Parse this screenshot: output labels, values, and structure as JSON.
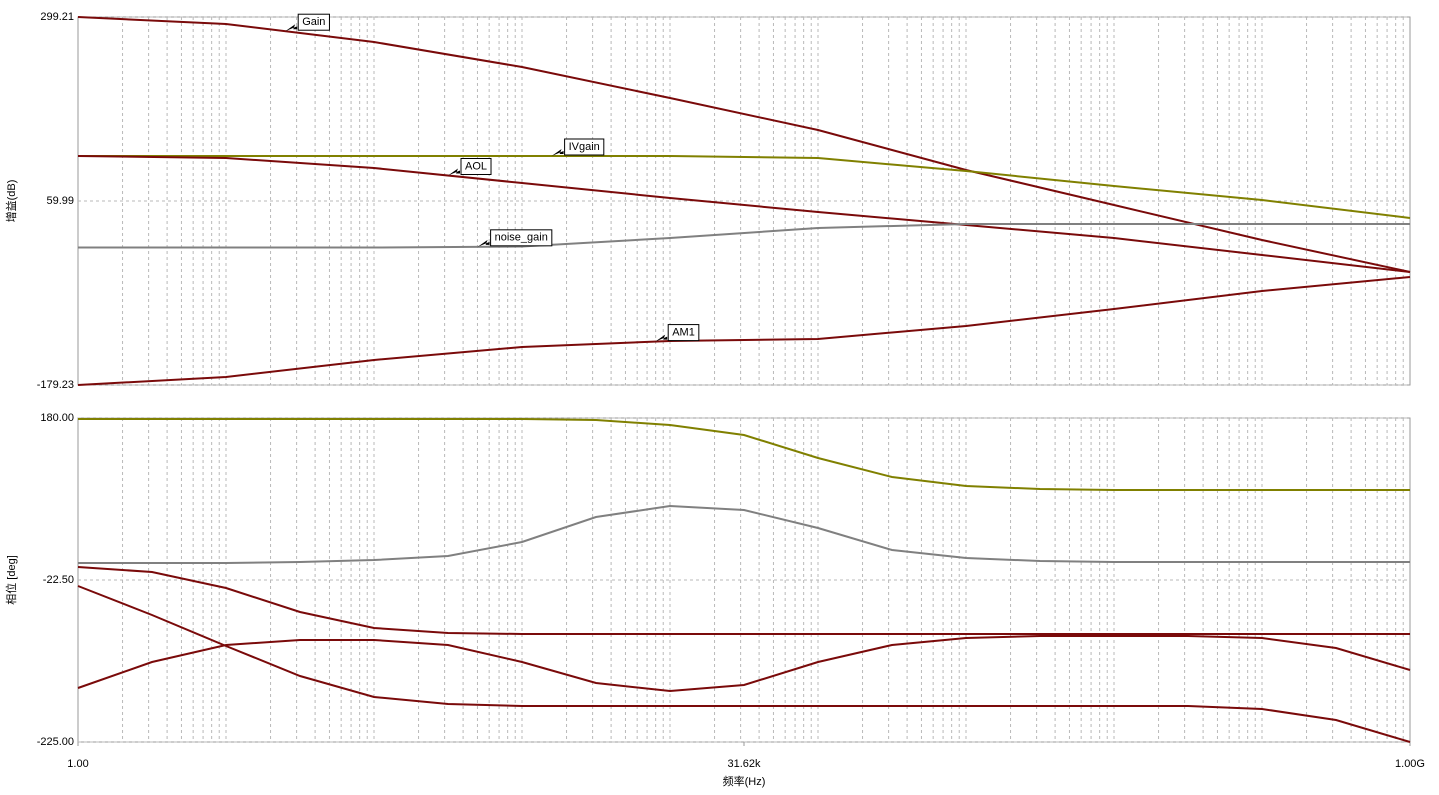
{
  "chart_data": [
    {
      "type": "line",
      "x_scale": "log",
      "grid": true,
      "ylabel": "增益(dB)",
      "xlim": [
        1,
        1000000000
      ],
      "ylim": [
        -179.23,
        299.21
      ],
      "yticks": [
        299.21,
        59.99,
        -179.23
      ],
      "x": [
        1,
        10,
        100,
        1000,
        10000,
        100000,
        1000000,
        10000000,
        100000000,
        1000000000
      ],
      "series": [
        {
          "name": "Gain",
          "color": "#7a0a0a",
          "values": [
            299.2,
            290.1,
            266.7,
            234.2,
            193.9,
            152.3,
            100.3,
            54.8,
            9.3,
            -32.3
          ]
        },
        {
          "name": "IVgain",
          "color": "#808000",
          "values": [
            118.5,
            118.5,
            118.5,
            118.5,
            118.5,
            115.9,
            99.0,
            79.5,
            61.3,
            37.9
          ]
        },
        {
          "name": "AOL",
          "color": "#7a0a0a",
          "values": [
            118.5,
            115.9,
            102.9,
            83.4,
            63.9,
            45.7,
            28.8,
            11.9,
            -10.2,
            -32.3
          ]
        },
        {
          "name": "noise_gain",
          "color": "#808080",
          "values": [
            -0.5,
            -0.5,
            -0.5,
            0.8,
            11.9,
            24.9,
            30.1,
            30.1,
            30.1,
            30.1
          ]
        },
        {
          "name": "AM1",
          "color": "#7a0a0a",
          "values": [
            -179.2,
            -168.8,
            -146.7,
            -129.8,
            -122.0,
            -119.4,
            -102.5,
            -80.4,
            -57.0,
            -38.8
          ]
        }
      ]
    },
    {
      "type": "line",
      "x_scale": "log",
      "grid": true,
      "ylabel": "相位 [deg]",
      "xlabel": "频率(Hz)",
      "xlim": [
        1,
        1000000000
      ],
      "xticks": [
        {
          "value": 1,
          "label": "1.00"
        },
        {
          "value": 31620,
          "label": "31.62k"
        },
        {
          "value": 1000000000,
          "label": "1.00G"
        }
      ],
      "ylim": [
        -225,
        180
      ],
      "yticks": [
        {
          "value": 180,
          "label": "180.00"
        },
        {
          "value": -22.5,
          "label": "-22.50"
        },
        {
          "value": -225,
          "label": "-225.00"
        }
      ],
      "x": [
        1,
        3.162,
        10,
        31.62,
        100,
        316.2,
        1000,
        3162,
        10000,
        31620,
        100000,
        316200,
        1000000,
        3162000,
        10000000,
        31620000,
        100000000,
        316200000,
        1000000000
      ],
      "series": [
        {
          "color": "#808000",
          "values": [
            178.75,
            178.75,
            178.75,
            178.75,
            178.75,
            178.75,
            178.75,
            177.5,
            171.25,
            158.75,
            130,
            106.25,
            95,
            91.25,
            90,
            90,
            90,
            90,
            90
          ]
        },
        {
          "color": "#808080",
          "values": [
            -1.25,
            -1.25,
            -1.25,
            0,
            2.5,
            7.5,
            25,
            56.25,
            70,
            65,
            42.5,
            15,
            5,
            1.25,
            0,
            0,
            0,
            0,
            0
          ]
        },
        {
          "color": "#7a0a0a",
          "values": [
            -6.25,
            -12.5,
            -32.5,
            -62.5,
            -82.5,
            -88.75,
            -90,
            -90,
            -90,
            -90,
            -90,
            -90,
            -90,
            -90,
            -90,
            -90,
            -90,
            -90,
            -90
          ]
        },
        {
          "color": "#7a0a0a",
          "values": [
            -30,
            -66.25,
            -105,
            -142.5,
            -168.75,
            -177.5,
            -180,
            -180,
            -180,
            -180,
            -180,
            -180,
            -180,
            -180,
            -180,
            -180,
            -183.75,
            -197.5,
            -225
          ]
        },
        {
          "color": "#7a0a0a",
          "values": [
            -157.5,
            -125,
            -103.75,
            -97.5,
            -97.5,
            -103.75,
            -125,
            -151.25,
            -161.25,
            -153.75,
            -125,
            -103.75,
            -95,
            -92.5,
            -92.5,
            -92.5,
            -95,
            -107.5,
            -135
          ]
        }
      ]
    }
  ]
}
